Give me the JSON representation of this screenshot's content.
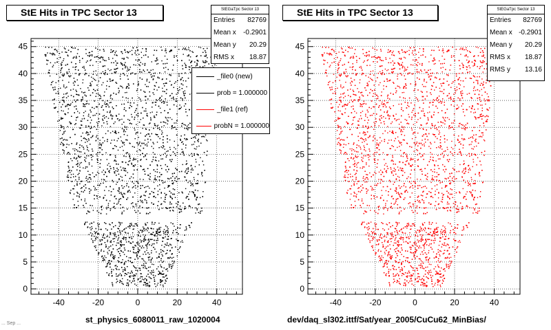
{
  "footer": {
    "left_file": "st_physics_6080011_raw_1020004",
    "right_path": "dev/daq_sl302.ittf/Sat/year_2005/CuCu62_MinBias/",
    "corner_text": "... Sep ..."
  },
  "panels": [
    {
      "title": "StE Hits in TPC Sector 13",
      "color": "#000000",
      "stats": {
        "header": "StEGaTpc Sector 13",
        "rows": [
          {
            "label": "Entries",
            "value": "82769"
          },
          {
            "label": "Mean x",
            "value": "-0.2901"
          },
          {
            "label": "Mean y",
            "value": "20.29"
          },
          {
            "label": "RMS x",
            "value": "18.87"
          }
        ]
      },
      "legend": [
        {
          "label": "_file0 (new)",
          "color": "#000000"
        },
        {
          "label": "prob = 1.000000",
          "color": "#000000"
        },
        {
          "label": "_file1 (ref)",
          "color": "#ff0000"
        },
        {
          "label": "probN = 1.000000",
          "color": "#ff0000"
        }
      ]
    },
    {
      "title": "StE Hits in TPC Sector 13",
      "color": "#ff0000",
      "stats": {
        "header": "StEGaTpc Sector 13",
        "rows": [
          {
            "label": "Entries",
            "value": "82769"
          },
          {
            "label": "Mean x",
            "value": "-0.2901"
          },
          {
            "label": "Mean y",
            "value": "20.29"
          },
          {
            "label": "RMS x",
            "value": "18.87"
          },
          {
            "label": "RMS y",
            "value": "13.16"
          }
        ]
      }
    }
  ],
  "chart_data": [
    {
      "type": "scatter",
      "title": "StE Hits in TPC Sector 13",
      "series": [
        {
          "name": "_file0 (new)",
          "color": "#000000"
        }
      ],
      "x_ticks": [
        -40,
        -20,
        0,
        20,
        40
      ],
      "y_ticks": [
        0,
        5,
        10,
        15,
        20,
        25,
        30,
        35,
        40,
        45
      ],
      "xlim": [
        -54,
        53
      ],
      "ylim": [
        -1,
        46.5
      ],
      "grid": true,
      "entries": 82769,
      "mean_x": -0.2901,
      "mean_y": 20.29,
      "rms_x": 18.87,
      "region_shape": {
        "upper_trapezoid": {
          "y": [
            14,
            45
          ],
          "x_at_bottom": [
            -33,
            33
          ],
          "x_at_top": [
            -48,
            40
          ]
        },
        "gap_y": [
          12.5,
          13.5
        ],
        "lower_trapezoid": {
          "y": [
            0.5,
            12.5
          ],
          "x_at_bottom": [
            -13,
            13
          ],
          "x_at_top": [
            -28,
            28
          ]
        }
      }
    },
    {
      "type": "scatter",
      "title": "StE Hits in TPC Sector 13",
      "series": [
        {
          "name": "_file1 (ref)",
          "color": "#ff0000"
        }
      ],
      "x_ticks": [
        -40,
        -20,
        0,
        20,
        40
      ],
      "y_ticks": [
        0,
        5,
        10,
        15,
        20,
        25,
        30,
        35,
        40,
        45
      ],
      "xlim": [
        -54,
        53
      ],
      "ylim": [
        -1,
        46.5
      ],
      "grid": true,
      "entries": 82769,
      "mean_x": -0.2901,
      "mean_y": 20.29,
      "rms_x": 18.87,
      "rms_y": 13.16,
      "region_shape": {
        "upper_trapezoid": {
          "y": [
            14,
            45
          ],
          "x_at_bottom": [
            -33,
            33
          ],
          "x_at_top": [
            -48,
            40
          ]
        },
        "gap_y": [
          12.5,
          13.5
        ],
        "lower_trapezoid": {
          "y": [
            0.5,
            12.5
          ],
          "x_at_bottom": [
            -13,
            13
          ],
          "x_at_top": [
            -28,
            28
          ]
        }
      }
    }
  ]
}
